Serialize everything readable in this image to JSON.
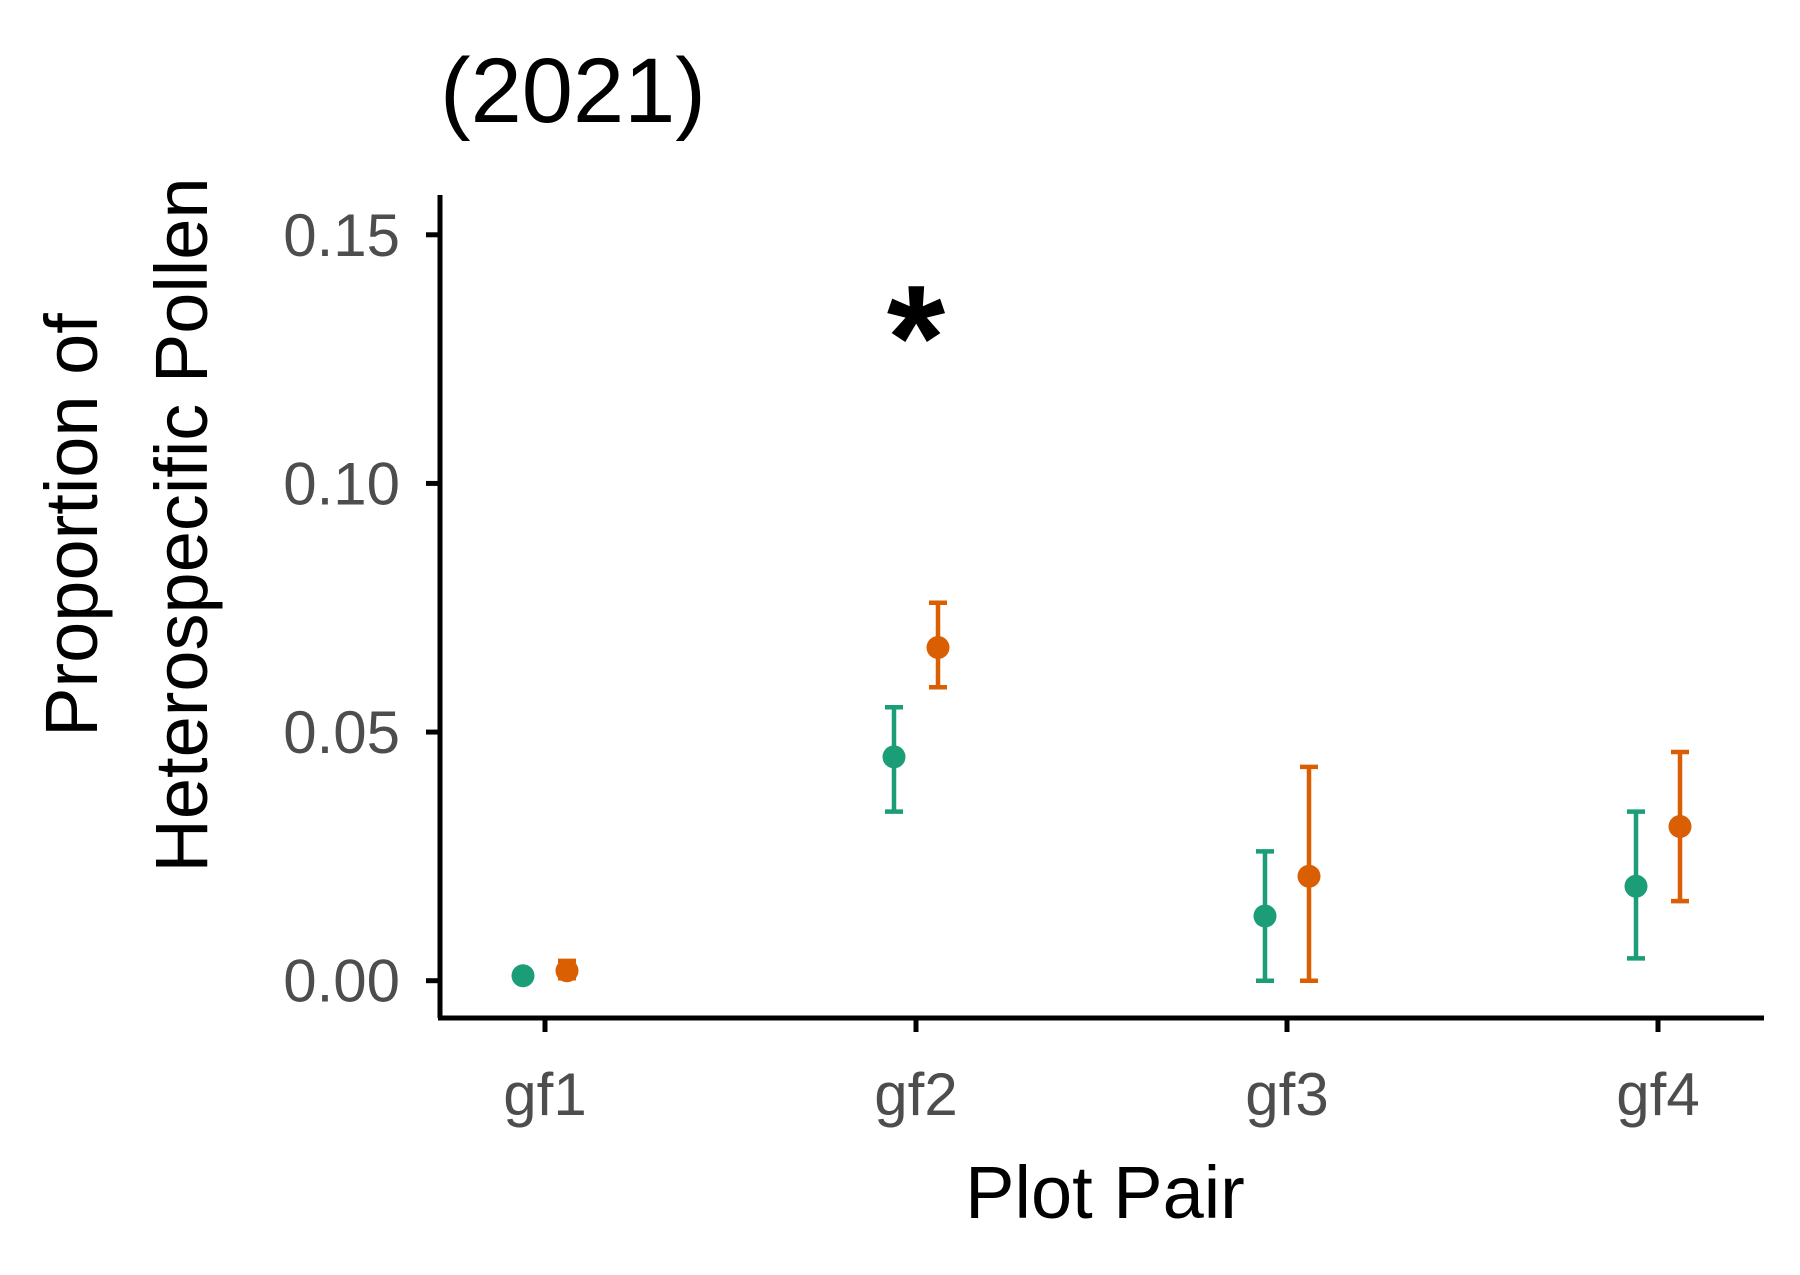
{
  "chart_data": {
    "type": "scatter",
    "title": "(2021)",
    "xlabel": "Plot Pair",
    "ylabel_lines": [
      "Proportion of",
      "Heterospecific Pollen"
    ],
    "categories": [
      "gf1",
      "gf2",
      "gf3",
      "gf4"
    ],
    "y_ticks": [
      "0.00",
      "0.05",
      "0.10",
      "0.15"
    ],
    "y_tick_values": [
      0.0,
      0.05,
      0.1,
      0.15
    ],
    "ylim": [
      -0.0075,
      0.158
    ],
    "grid": false,
    "legend": "none",
    "series": [
      {
        "color": "#1b9e77",
        "values": [
          0.001,
          0.045,
          0.013,
          0.019
        ],
        "lower": [
          0.001,
          0.034,
          0.0,
          0.0045
        ],
        "upper": [
          0.001,
          0.055,
          0.026,
          0.034
        ]
      },
      {
        "color": "#d95f02",
        "values": [
          0.002,
          0.067,
          0.021,
          0.031
        ],
        "lower": [
          0.0005,
          0.059,
          0.0,
          0.016
        ],
        "upper": [
          0.004,
          0.076,
          0.043,
          0.046
        ]
      }
    ],
    "annotations": [
      {
        "text": "*",
        "category": "gf2",
        "y": 0.137
      }
    ]
  }
}
